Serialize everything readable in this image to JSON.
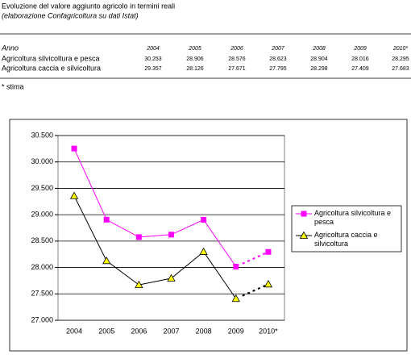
{
  "header": {
    "title": "Evoluzione del valore aggiunto agricolo in termini reali",
    "subtitle": "(elaborazione Confagricoltura su dati Istat)"
  },
  "table": {
    "columns": [
      "Anno",
      "2004",
      "2005",
      "2006",
      "2007",
      "2008",
      "2009",
      "2010*"
    ],
    "rows": [
      [
        "Agricoltura silvicoltura e pesca",
        "30.253",
        "28.906",
        "28.576",
        "28.623",
        "28.904",
        "28.016",
        "28.295"
      ],
      [
        "Agricoltura caccia e silvicoltura",
        "29.357",
        "28.126",
        "27.671",
        "27.795",
        "28.298",
        "27.409",
        "27.683"
      ]
    ]
  },
  "note": "* stima",
  "chart_data": {
    "type": "line",
    "categories": [
      "2004",
      "2005",
      "2006",
      "2007",
      "2008",
      "2009",
      "2010*"
    ],
    "series": [
      {
        "name": "Agricoltura silvicoltura e pesca",
        "color": "#ff00ff",
        "marker": "square",
        "values": [
          30253,
          28906,
          28576,
          28623,
          28904,
          28016,
          28295
        ]
      },
      {
        "name": "Agricoltura caccia e silvicoltura",
        "color": "#000000",
        "marker": "triangle",
        "values": [
          29357,
          28126,
          27671,
          27795,
          28298,
          27409,
          27683
        ]
      }
    ],
    "ylim": [
      27000,
      30500
    ],
    "yticks": [
      {
        "value": 27000,
        "label": "27.000"
      },
      {
        "value": 27500,
        "label": "27.500"
      },
      {
        "value": 28000,
        "label": "28.000"
      },
      {
        "value": 28500,
        "label": "28.500"
      },
      {
        "value": 29000,
        "label": "29.000"
      },
      {
        "value": 29500,
        "label": "29.500"
      },
      {
        "value": 30000,
        "label": "30.000"
      },
      {
        "value": 30500,
        "label": "30.500"
      }
    ],
    "grid": true,
    "legend": "right"
  }
}
